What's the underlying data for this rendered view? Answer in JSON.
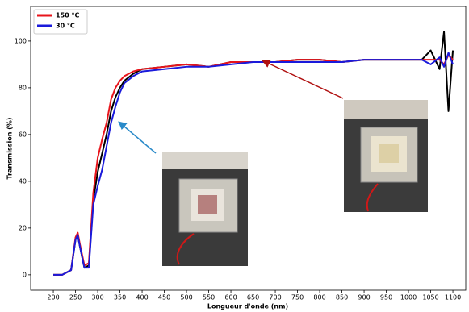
{
  "chart_data": {
    "type": "line",
    "xlabel": "Longueur d'onde (nm)",
    "ylabel": "Transmission (%)",
    "x": [
      200,
      220,
      240,
      250,
      255,
      260,
      270,
      280,
      290,
      300,
      310,
      320,
      330,
      340,
      350,
      360,
      380,
      400,
      450,
      500,
      550,
      600,
      650,
      700,
      750,
      800,
      850,
      900,
      950,
      1000,
      1030,
      1050,
      1070,
      1080,
      1090,
      1100
    ],
    "series": [
      {
        "color": "#000000",
        "values": [
          0,
          0,
          2,
          15,
          17,
          12,
          3,
          4,
          32,
          44,
          52,
          60,
          70,
          76,
          80,
          83,
          86,
          88,
          89,
          90,
          89,
          91,
          91,
          91,
          92,
          92,
          91,
          92,
          92,
          92,
          92,
          96,
          88,
          104,
          70,
          96
        ]
      },
      {
        "name": "150 °C",
        "color": "#e8141b",
        "values": [
          0,
          0,
          2,
          16,
          18,
          13,
          4,
          5,
          35,
          50,
          58,
          65,
          75,
          80,
          83,
          85,
          87,
          88,
          89,
          90,
          89,
          91,
          91,
          91,
          92,
          92,
          91,
          92,
          92,
          92,
          92,
          92,
          92,
          90,
          94,
          92
        ]
      },
      {
        "name": "30 °C",
        "color": "#1a1adb",
        "values": [
          0,
          0,
          2,
          15,
          17,
          12,
          3,
          3,
          30,
          38,
          45,
          55,
          65,
          72,
          78,
          82,
          85,
          87,
          88,
          89,
          89,
          90,
          91,
          91,
          91,
          91,
          91,
          92,
          92,
          92,
          92,
          90,
          93,
          89,
          95,
          90
        ]
      }
    ],
    "xlim": [
      149,
      1129
    ],
    "ylim": [
      -6.6,
      114.8
    ],
    "xticks": [
      200,
      250,
      300,
      350,
      400,
      450,
      500,
      550,
      600,
      650,
      700,
      750,
      800,
      850,
      900,
      950,
      1000,
      1050,
      1100
    ],
    "yticks": [
      0,
      20,
      40,
      60,
      80,
      100
    ],
    "legend": "upper-left"
  }
}
